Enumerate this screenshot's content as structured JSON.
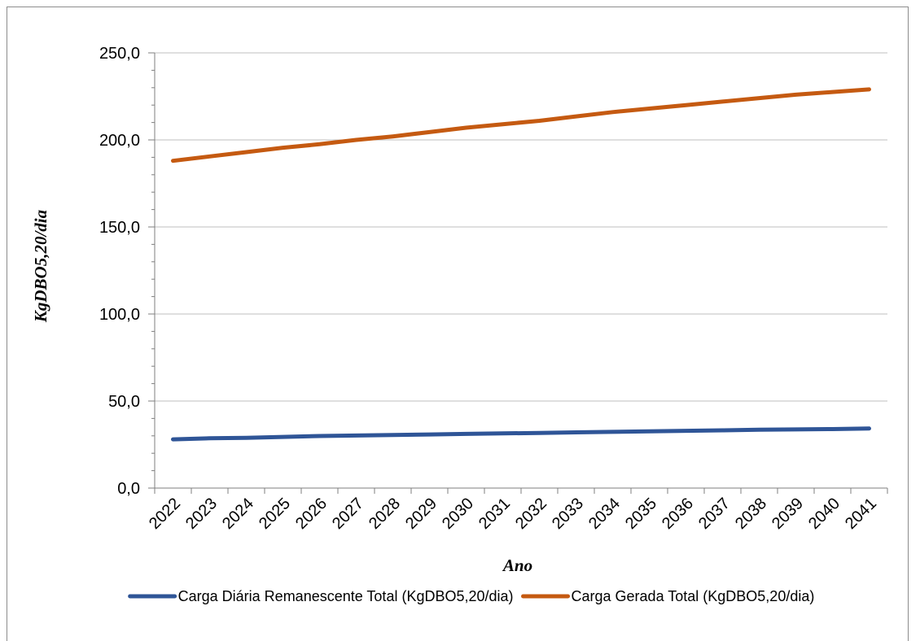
{
  "chart_data": {
    "type": "line",
    "title": "",
    "xlabel": "Ano",
    "ylabel": "KgDBO5,20/dia",
    "categories": [
      "2022",
      "2023",
      "2024",
      "2025",
      "2026",
      "2027",
      "2028",
      "2029",
      "2030",
      "2031",
      "2032",
      "2033",
      "2034",
      "2035",
      "2036",
      "2037",
      "2038",
      "2039",
      "2040",
      "2041"
    ],
    "yticks": [
      "0,0",
      "50,0",
      "100,0",
      "150,0",
      "200,0",
      "250,0"
    ],
    "ylim": [
      0,
      250
    ],
    "grid": true,
    "legend_position": "bottom",
    "series": [
      {
        "name": "Carga Diária Remanescente Total (KgDBO5,20/dia)",
        "color": "#2f5597",
        "values": [
          28.0,
          28.6,
          28.9,
          29.4,
          29.9,
          30.2,
          30.5,
          30.8,
          31.1,
          31.4,
          31.7,
          32.0,
          32.3,
          32.6,
          32.9,
          33.2,
          33.5,
          33.7,
          33.9,
          34.2
        ]
      },
      {
        "name": "Carga Gerada Total (KgDBO5,20/dia)",
        "color": "#c55a11",
        "values": [
          188.0,
          190.5,
          193.0,
          195.5,
          197.5,
          200.0,
          202.0,
          204.5,
          207.0,
          209.0,
          211.0,
          213.5,
          216.0,
          218.0,
          220.0,
          222.0,
          224.0,
          226.0,
          227.5,
          229.0
        ]
      }
    ]
  }
}
